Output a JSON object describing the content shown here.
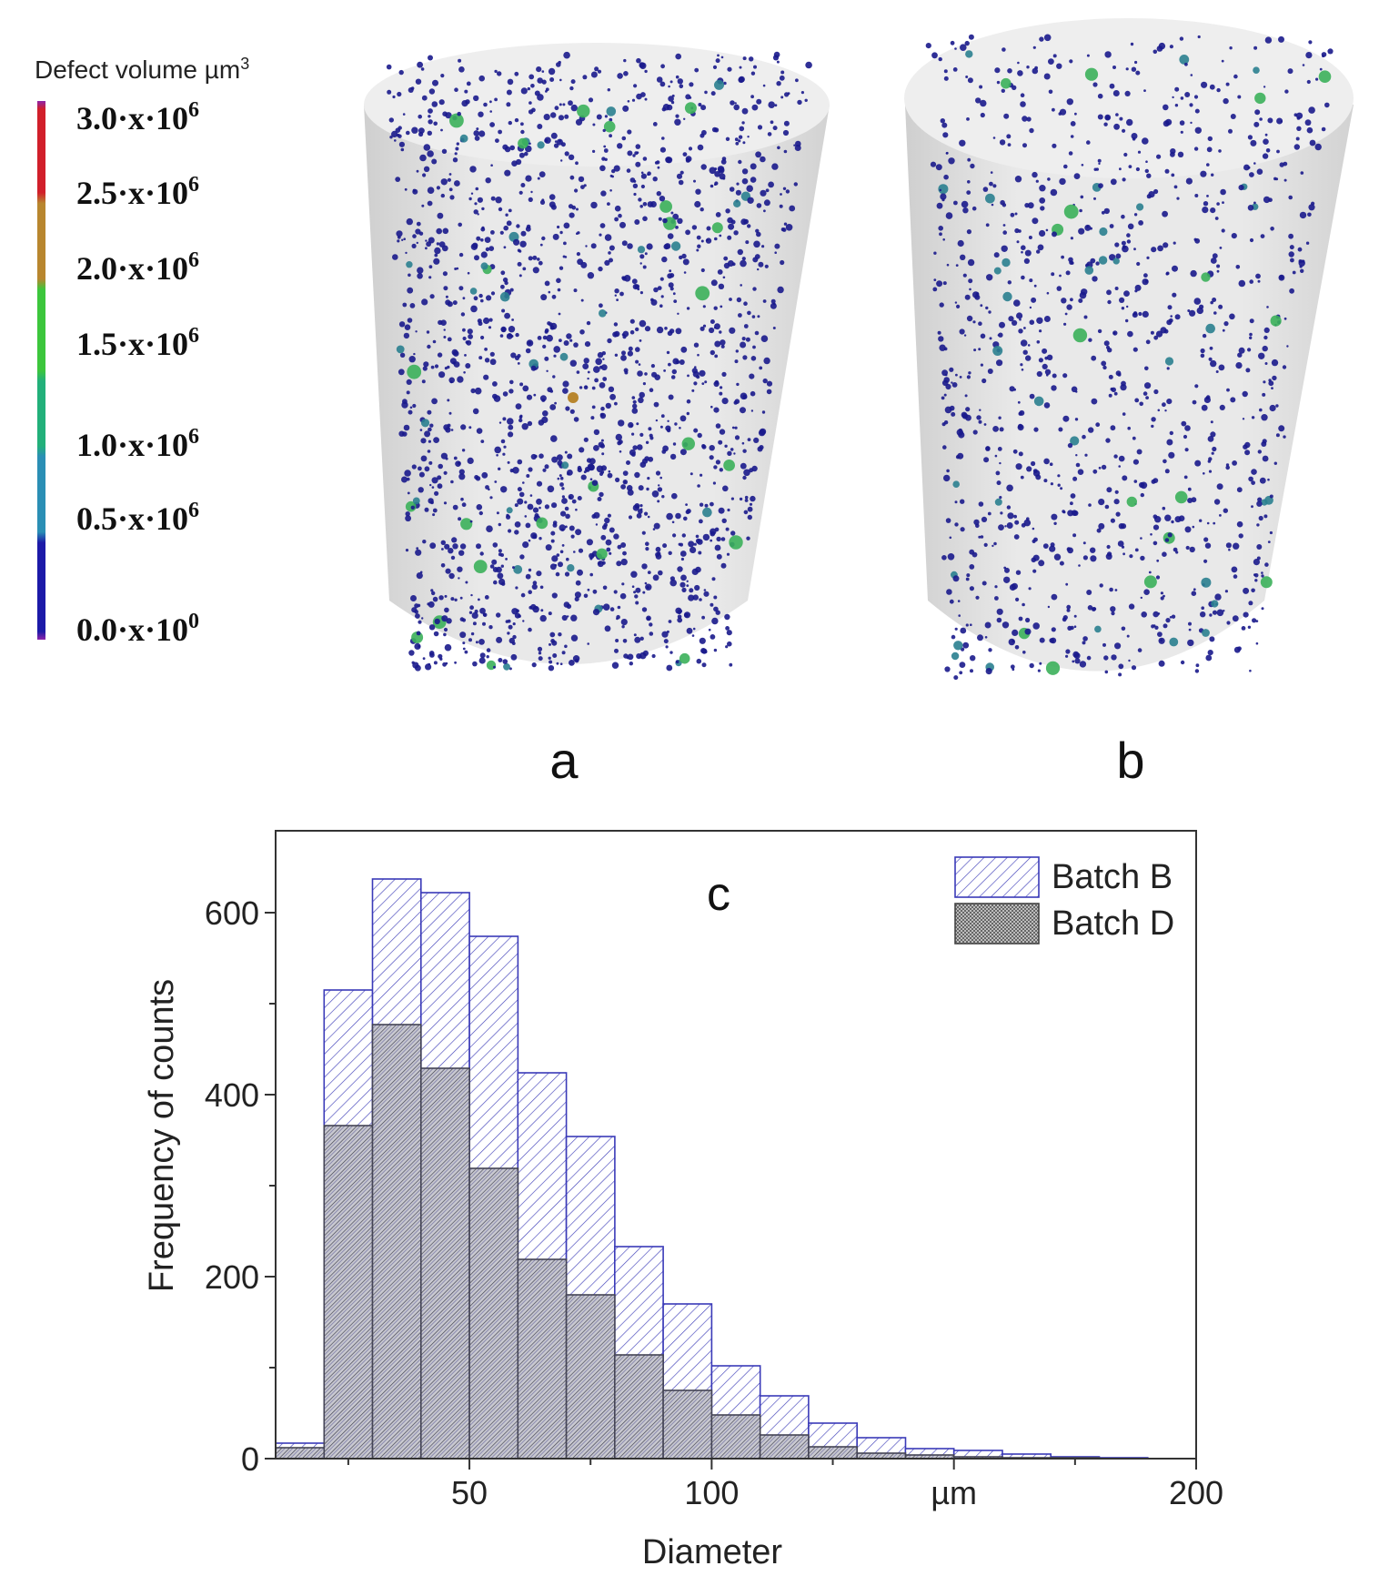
{
  "colorbar": {
    "title": "Defect volume µm",
    "title_sup": "3",
    "stops": [
      "#6a1b9a",
      "#d11f2a",
      "#b8862e",
      "#3cc63c",
      "#22b07a",
      "#2a8fb5",
      "#1c1aa8",
      "#8a2be2"
    ],
    "ticks": [
      {
        "mantissa": "3.0·x·10",
        "exp": "6",
        "value": 3.0
      },
      {
        "mantissa": "2.5·x·10",
        "exp": "6",
        "value": 2.5
      },
      {
        "mantissa": "2.0·x·10",
        "exp": "6",
        "value": 2.0
      },
      {
        "mantissa": "1.5·x·10",
        "exp": "6",
        "value": 1.5
      },
      {
        "mantissa": "1.0·x·10",
        "exp": "6",
        "value": 1.0
      },
      {
        "mantissa": "0.5·x·10",
        "exp": "6",
        "value": 0.5
      },
      {
        "mantissa": "0.0·x·10",
        "exp": "0",
        "value": 0.0
      }
    ]
  },
  "panels": {
    "a": {
      "label": "a"
    },
    "b": {
      "label": "b"
    }
  },
  "colors": {
    "pore_main": "#1a1a8c",
    "pore_mid": "#2a7f8f",
    "pore_large": "#3bb05a",
    "pore_max": "#b8862e",
    "cylinder_fill": "#e6e6e6",
    "batch_b": "#3a3ab8",
    "batch_d": "#555566"
  },
  "chart_data": {
    "type": "bar",
    "title": "c",
    "xlabel": "Diameter",
    "ylabel": "Frequency of counts",
    "xlim": [
      10,
      200
    ],
    "ylim": [
      0,
      690
    ],
    "xticks": [
      {
        "value": 50,
        "label": "50"
      },
      {
        "value": 100,
        "label": "100"
      },
      {
        "value": 150,
        "label": "µm"
      },
      {
        "value": 200,
        "label": "200"
      }
    ],
    "yticks": [
      0,
      200,
      400,
      600
    ],
    "bin_edges": [
      10,
      20,
      30,
      40,
      50,
      60,
      70,
      80,
      90,
      100,
      110,
      120,
      130,
      140,
      150,
      160,
      170,
      180,
      190
    ],
    "series": [
      {
        "name": "Batch B",
        "pattern": "hatch",
        "values": [
          17,
          515,
          637,
          622,
          574,
          424,
          354,
          233,
          170,
          102,
          69,
          39,
          23,
          11,
          9,
          5,
          2,
          1
        ]
      },
      {
        "name": "Batch D",
        "pattern": "crosshatch",
        "values": [
          12,
          366,
          477,
          429,
          319,
          219,
          180,
          114,
          75,
          48,
          26,
          13,
          6,
          4,
          2,
          1,
          1,
          0
        ]
      }
    ],
    "legend": "top-right"
  }
}
